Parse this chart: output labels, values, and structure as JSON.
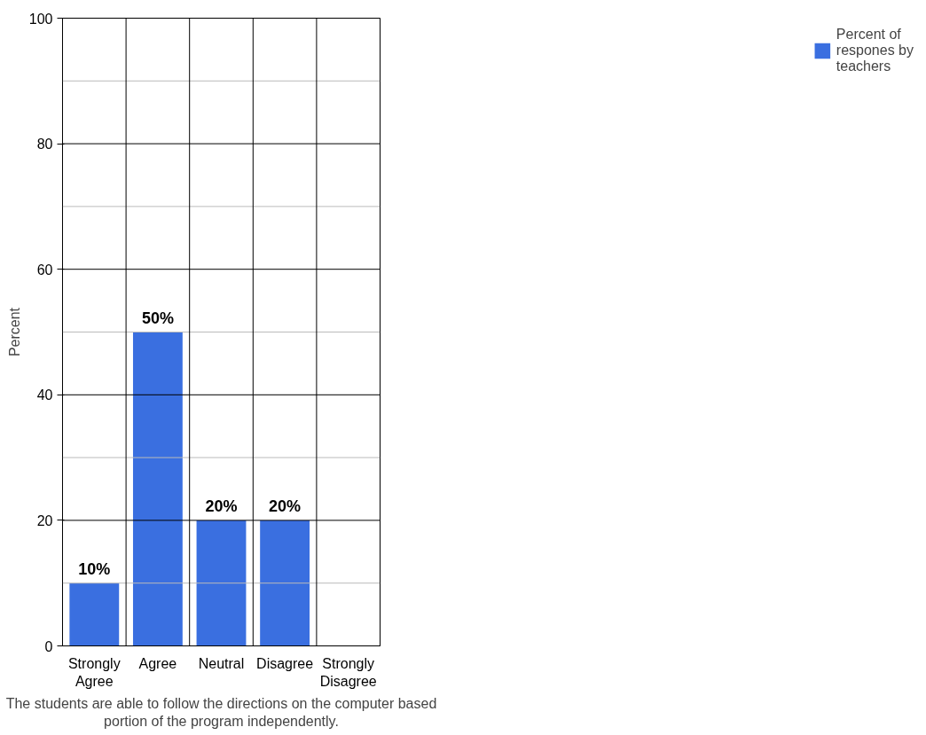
{
  "chart_data": {
    "type": "bar",
    "xlabel": "The students are able to follow the directions on the computer based portion of the program independently.",
    "ylabel": "Percent",
    "categories": [
      "Strongly Agree",
      "Agree",
      "Neutral",
      "Disagree",
      "Strongly Disagree"
    ],
    "series": [
      {
        "name": "Percent of respones by teachers",
        "color": "#3a6fe0",
        "values": [
          10,
          50,
          20,
          20,
          0
        ],
        "value_labels": [
          "10%",
          "50%",
          "20%",
          "20%",
          null
        ]
      }
    ],
    "ylim": [
      0,
      100
    ],
    "yticks": [
      0,
      {
        "value": 10,
        "label": null
      },
      20,
      {
        "value": 30,
        "label": null
      },
      40,
      {
        "value": 50,
        "label": null
      },
      60,
      {
        "value": 70,
        "label": null
      },
      80,
      {
        "value": 90,
        "label": null
      },
      100
    ],
    "grid": true,
    "legend": "right"
  }
}
